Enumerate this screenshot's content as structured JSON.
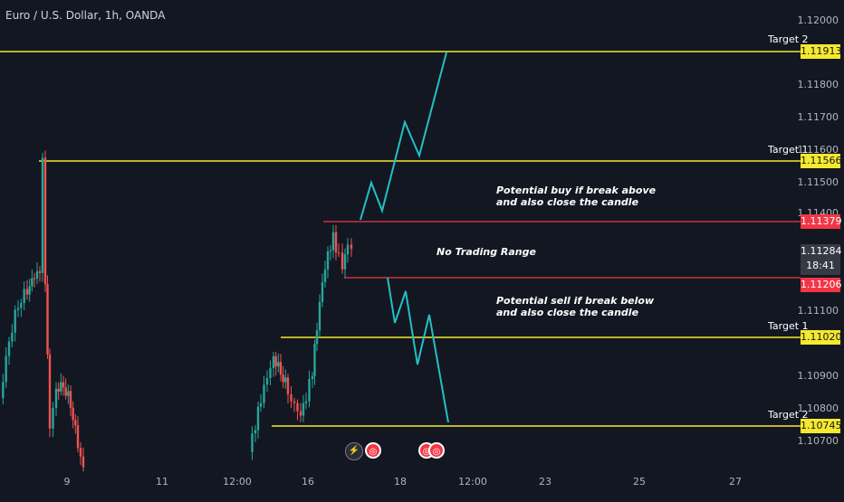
{
  "chart_title": "Euro / U.S. Dollar, 1h, OANDA",
  "price_axis": [
    "1.12000",
    "1.11800",
    "1.11700",
    "1.11600",
    "1.11500",
    "1.11400",
    "1.11100",
    "1.10900",
    "1.10800",
    "1.10700"
  ],
  "time_axis": [
    "9",
    "11",
    "12:00",
    "16",
    "18",
    "12:00",
    "23",
    "25",
    "27"
  ],
  "levels": {
    "target2_up": {
      "label": "Target 2",
      "price": "1.11913"
    },
    "target1_up": {
      "label": "Target 1",
      "price": "1.11566"
    },
    "resistance": {
      "price": "1.11379"
    },
    "support": {
      "price": "1.11206"
    },
    "target1_down": {
      "label": "Target 1",
      "price": "1.11020"
    },
    "target2_down": {
      "label": "Target 2",
      "price": "1.10745"
    }
  },
  "current": {
    "price": "1.11284",
    "countdown": "18:41"
  },
  "notes": {
    "buy_line1": "Potential buy if break above",
    "buy_line2": "and also close the candle",
    "range": "No Trading Range",
    "sell_line1": "Potential sell if break below",
    "sell_line2": "and also close the candle"
  },
  "colors": {
    "up": "#26a69a",
    "down": "#ef5350",
    "level_yellow": "#f5e92d",
    "level_red": "#f23645",
    "projection": "#22c1c3"
  },
  "events": [
    "flash-icon",
    "flag-icon",
    "flag-icon",
    "flag-icon"
  ]
}
